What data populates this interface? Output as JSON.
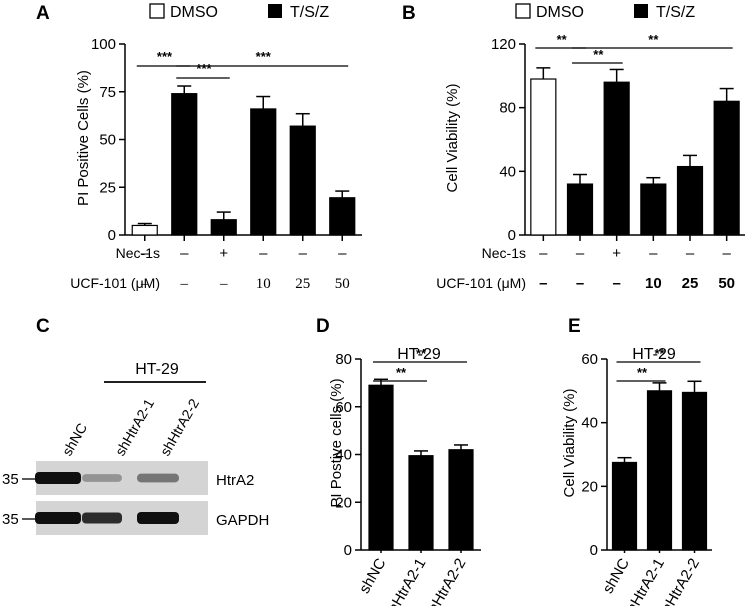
{
  "legend": {
    "dmso": "DMSO",
    "tsz": "T/S/Z"
  },
  "chart_data": [
    {
      "panel": "A",
      "type": "bar",
      "ylabel": "PI Positive Cells (%)",
      "ylim": [
        0,
        100
      ],
      "yticks": [
        "0",
        "25",
        "50",
        "75",
        "100"
      ],
      "ytick_values": [
        0,
        25,
        50,
        75,
        100
      ],
      "values": [
        5,
        74,
        8,
        66,
        57,
        19.5
      ],
      "errors": [
        1,
        4,
        4,
        6.5,
        6.5,
        3.5
      ],
      "fills": [
        "white",
        "black",
        "black",
        "black",
        "black",
        "black"
      ],
      "row_labels": [
        "Nec-1s",
        "UCF-101 (μM)"
      ],
      "rows": [
        [
          "–",
          "–",
          "+",
          "–",
          "–",
          "–"
        ],
        [
          "–",
          "–",
          "–",
          "10",
          "25",
          "50"
        ]
      ],
      "sig": [
        "***",
        "***",
        "***"
      ]
    },
    {
      "panel": "B",
      "type": "bar",
      "ylabel": "Cell Viability (%)",
      "ylim": [
        0,
        120
      ],
      "yticks": [
        "0",
        "40",
        "80",
        "120"
      ],
      "ytick_values": [
        0,
        40,
        80,
        120
      ],
      "values": [
        98,
        32,
        96,
        32,
        43,
        84
      ],
      "errors": [
        7,
        6,
        8,
        4,
        7,
        8
      ],
      "fills": [
        "white",
        "black",
        "black",
        "black",
        "black",
        "black"
      ],
      "row_labels": [
        "Nec-1s",
        "UCF-101 (μM)"
      ],
      "rows": [
        [
          "–",
          "–",
          "+",
          "–",
          "–",
          "–"
        ],
        [
          "–",
          "–",
          "–",
          "10",
          "25",
          "50"
        ]
      ],
      "sig": [
        "**",
        "**",
        "**"
      ]
    },
    {
      "panel": "D",
      "type": "bar",
      "title": "HT-29",
      "ylabel": "PI Postive cells (%)",
      "ylim": [
        0,
        80
      ],
      "yticks": [
        "0",
        "20",
        "40",
        "60",
        "80"
      ],
      "ytick_values": [
        0,
        20,
        40,
        60,
        80
      ],
      "categories": [
        "shNC",
        "shHtrA2-1",
        "shHtrA2-2"
      ],
      "values": [
        69,
        39.5,
        42
      ],
      "errors": [
        2.5,
        2,
        2
      ],
      "sig": [
        "**",
        "**"
      ]
    },
    {
      "panel": "E",
      "type": "bar",
      "title": "HT-29",
      "ylabel": "Cell Viability (%)",
      "ylim": [
        0,
        60
      ],
      "yticks": [
        "0",
        "20",
        "40",
        "60"
      ],
      "ytick_values": [
        0,
        20,
        40,
        60
      ],
      "categories": [
        "shNC",
        "shHtrA2-1",
        "shHtrA2-2"
      ],
      "values": [
        27.5,
        50,
        49.5
      ],
      "errors": [
        1.5,
        2.5,
        3.5
      ],
      "sig": [
        "**",
        "**"
      ]
    }
  ],
  "western": {
    "letter": "C",
    "cell_line": "HT-29",
    "lanes": [
      "shNC",
      "shHtrA2-1",
      "shHtrA2-2"
    ],
    "bands": [
      {
        "label": "HtrA2",
        "marker": "35",
        "intensity": [
          1.0,
          0.28,
          0.45
        ]
      },
      {
        "label": "GAPDH",
        "marker": "35",
        "intensity": [
          1.0,
          0.85,
          1.0
        ]
      }
    ]
  }
}
